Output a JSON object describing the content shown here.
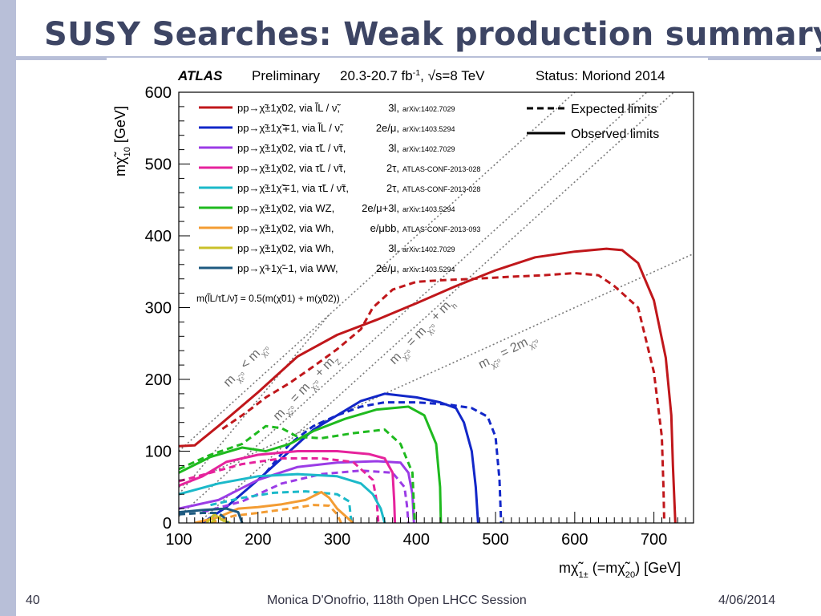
{
  "slide": {
    "title": "SUSY Searches: Weak production summary",
    "page_number": "40",
    "footer_center": "Monica D'Onofrio, 118th Open LHCC Session",
    "footer_date": "4/06/2014"
  },
  "colors": {
    "accent_bar": "#b8bfd8",
    "title": "#3d4564"
  },
  "chart_data": {
    "type": "line",
    "header": {
      "experiment": "ATLAS",
      "label": "Preliminary",
      "lumi": "20.3-20.7 fb",
      "lumi_sup": "-1",
      "energy": ", √s=8 TeV",
      "status": "Status: Moriond 2014"
    },
    "xlabel": "m",
    "xlabel_sym": "χ̃",
    "xlabel_sub": "1",
    "xlabel_sup": "±",
    "xlabel_mid": " (=m",
    "xlabel_sym2": "χ̃",
    "xlabel_sub2": "2",
    "xlabel_sup2": "0",
    "xlabel_unit": ") [GeV]",
    "ylabel": "m",
    "ylabel_sym": "χ̃",
    "ylabel_sub": "1",
    "ylabel_sup": "0",
    "ylabel_unit": " [GeV]",
    "xlim": [
      100,
      750
    ],
    "ylim": [
      0,
      600
    ],
    "x_ticks": [
      100,
      200,
      300,
      400,
      500,
      600,
      700
    ],
    "y_ticks": [
      0,
      100,
      200,
      300,
      400,
      500,
      600
    ],
    "style_legend": [
      {
        "label": "Expected limits",
        "style": "dashed"
      },
      {
        "label": "Observed limits",
        "style": "solid"
      }
    ],
    "series": [
      {
        "process": "pp→χ̃±1χ̃02, via l̃L / ν̃,",
        "final_state": "3l,",
        "ref": "arXiv:1402.7029",
        "color": "#c0171b",
        "observed": [
          [
            100,
            107
          ],
          [
            120,
            108
          ],
          [
            150,
            135
          ],
          [
            200,
            182
          ],
          [
            250,
            232
          ],
          [
            300,
            262
          ],
          [
            350,
            283
          ],
          [
            400,
            306
          ],
          [
            450,
            330
          ],
          [
            500,
            352
          ],
          [
            550,
            370
          ],
          [
            600,
            378
          ],
          [
            640,
            382
          ],
          [
            660,
            380
          ],
          [
            680,
            362
          ],
          [
            700,
            310
          ],
          [
            715,
            230
          ],
          [
            722,
            150
          ],
          [
            724,
            80
          ],
          [
            727,
            0
          ]
        ],
        "expected": [
          [
            155,
            131
          ],
          [
            180,
            150
          ],
          [
            195,
            162
          ],
          [
            210,
            175
          ],
          [
            240,
            195
          ],
          [
            270,
            218
          ],
          [
            300,
            242
          ],
          [
            330,
            270
          ],
          [
            345,
            300
          ],
          [
            370,
            325
          ],
          [
            400,
            336
          ],
          [
            430,
            338
          ],
          [
            470,
            340
          ],
          [
            520,
            343
          ],
          [
            560,
            345
          ],
          [
            600,
            348
          ],
          [
            630,
            345
          ],
          [
            650,
            330
          ],
          [
            680,
            300
          ],
          [
            700,
            210
          ],
          [
            710,
            120
          ],
          [
            712,
            50
          ],
          [
            713,
            0
          ]
        ]
      },
      {
        "process": "pp→χ̃±1χ̃∓1, via l̃L / ν̃,",
        "final_state": "2e/μ,",
        "ref": "arXiv:1403.5294",
        "color": "#1227c8",
        "observed": [
          [
            130,
            0
          ],
          [
            160,
            22
          ],
          [
            200,
            60
          ],
          [
            240,
            100
          ],
          [
            270,
            130
          ],
          [
            300,
            150
          ],
          [
            330,
            170
          ],
          [
            360,
            180
          ],
          [
            400,
            175
          ],
          [
            430,
            168
          ],
          [
            450,
            160
          ],
          [
            460,
            140
          ],
          [
            470,
            100
          ],
          [
            475,
            50
          ],
          [
            478,
            0
          ]
        ],
        "expected": [
          [
            210,
            70
          ],
          [
            240,
            110
          ],
          [
            270,
            135
          ],
          [
            300,
            150
          ],
          [
            330,
            162
          ],
          [
            360,
            168
          ],
          [
            400,
            168
          ],
          [
            440,
            165
          ],
          [
            470,
            160
          ],
          [
            490,
            148
          ],
          [
            500,
            120
          ],
          [
            505,
            60
          ],
          [
            507,
            0
          ]
        ]
      },
      {
        "process": "pp→χ̃±1χ̃02, via τ̃L / ν̃τ,",
        "final_state": "3l,",
        "ref": "arXiv:1402.7029",
        "color": "#9b3ce6",
        "observed": [
          [
            100,
            20
          ],
          [
            150,
            32
          ],
          [
            200,
            60
          ],
          [
            250,
            78
          ],
          [
            300,
            84
          ],
          [
            350,
            86
          ],
          [
            380,
            84
          ],
          [
            390,
            70
          ],
          [
            395,
            40
          ],
          [
            397,
            0
          ]
        ],
        "expected": [
          [
            130,
            15
          ],
          [
            180,
            30
          ],
          [
            230,
            55
          ],
          [
            280,
            68
          ],
          [
            330,
            73
          ],
          [
            370,
            70
          ],
          [
            385,
            50
          ],
          [
            388,
            25
          ],
          [
            390,
            0
          ]
        ]
      },
      {
        "process": "pp→χ̃±1χ̃02, via τ̃L / ν̃τ,",
        "final_state": "2τ,",
        "ref": "ATLAS-CONF-2013-028",
        "color": "#e6239c",
        "observed": [
          [
            100,
            52
          ],
          [
            130,
            65
          ],
          [
            160,
            85
          ],
          [
            200,
            95
          ],
          [
            250,
            100
          ],
          [
            300,
            100
          ],
          [
            340,
            96
          ],
          [
            360,
            90
          ],
          [
            370,
            70
          ],
          [
            372,
            30
          ],
          [
            373,
            0
          ]
        ],
        "expected": [
          [
            100,
            58
          ],
          [
            140,
            70
          ],
          [
            180,
            82
          ],
          [
            230,
            90
          ],
          [
            280,
            90
          ],
          [
            320,
            85
          ],
          [
            345,
            60
          ],
          [
            350,
            30
          ],
          [
            352,
            0
          ]
        ]
      },
      {
        "process": "pp→χ̃±1χ̃∓1, via τ̃L / ν̃τ,",
        "final_state": "2τ,",
        "ref": "ATLAS-CONF-2013-028",
        "color": "#1bb9c9",
        "observed": [
          [
            100,
            40
          ],
          [
            150,
            55
          ],
          [
            200,
            65
          ],
          [
            250,
            68
          ],
          [
            300,
            65
          ],
          [
            330,
            55
          ],
          [
            345,
            40
          ],
          [
            355,
            20
          ],
          [
            360,
            0
          ]
        ],
        "expected": [
          [
            140,
            25
          ],
          [
            180,
            35
          ],
          [
            220,
            42
          ],
          [
            260,
            44
          ],
          [
            300,
            40
          ],
          [
            315,
            30
          ],
          [
            318,
            0
          ]
        ]
      },
      {
        "process": "pp→χ̃±1χ̃02, via WZ,",
        "final_state": "2e/μ+3l,",
        "ref": "arXiv:1403.5294",
        "color": "#1fba1f",
        "observed": [
          [
            100,
            70
          ],
          [
            140,
            92
          ],
          [
            180,
            105
          ],
          [
            210,
            100
          ],
          [
            240,
            110
          ],
          [
            270,
            128
          ],
          [
            310,
            145
          ],
          [
            350,
            158
          ],
          [
            390,
            162
          ],
          [
            410,
            150
          ],
          [
            425,
            110
          ],
          [
            430,
            50
          ],
          [
            431,
            0
          ]
        ],
        "expected": [
          [
            100,
            75
          ],
          [
            140,
            95
          ],
          [
            180,
            110
          ],
          [
            210,
            135
          ],
          [
            230,
            132
          ],
          [
            250,
            120
          ],
          [
            280,
            118
          ],
          [
            320,
            125
          ],
          [
            360,
            130
          ],
          [
            380,
            110
          ],
          [
            395,
            70
          ],
          [
            398,
            0
          ]
        ]
      },
      {
        "process": "pp→χ̃±1χ̃02, via Wh,",
        "final_state": "e/μbb,",
        "ref": "ATLAS-CONF-2013-093",
        "color": "#f39c33",
        "observed": [
          [
            120,
            0
          ],
          [
            150,
            8
          ],
          [
            175,
            20
          ],
          [
            200,
            22
          ],
          [
            230,
            26
          ],
          [
            260,
            32
          ],
          [
            280,
            43
          ],
          [
            290,
            35
          ],
          [
            300,
            20
          ],
          [
            310,
            10
          ],
          [
            320,
            0
          ]
        ],
        "expected": [
          [
            140,
            0
          ],
          [
            170,
            10
          ],
          [
            200,
            14
          ],
          [
            240,
            20
          ],
          [
            270,
            25
          ],
          [
            290,
            24
          ],
          [
            300,
            12
          ],
          [
            305,
            0
          ]
        ]
      },
      {
        "process": "pp→χ̃±1χ̃02, via Wh,",
        "final_state": "3l,",
        "ref": "arXiv:1402.7029",
        "color": "#c9c02a",
        "observed": [
          [
            135,
            0
          ],
          [
            145,
            12
          ],
          [
            155,
            4
          ],
          [
            165,
            0
          ]
        ],
        "expected": [
          [
            140,
            0
          ],
          [
            150,
            8
          ],
          [
            160,
            0
          ]
        ]
      },
      {
        "process": "pp→χ̃+1χ̃−1, via WW,",
        "final_state": "2e/μ,",
        "ref": "arXiv:1403.5294",
        "color": "#1e5a80",
        "observed": [
          [
            100,
            15
          ],
          [
            130,
            18
          ],
          [
            160,
            20
          ],
          [
            175,
            15
          ],
          [
            180,
            0
          ]
        ],
        "expected": [
          [
            100,
            12
          ],
          [
            130,
            14
          ],
          [
            150,
            14
          ],
          [
            160,
            5
          ],
          [
            162,
            0
          ]
        ]
      }
    ],
    "diagonals": [
      {
        "label": "m(χ̃01) < m(χ̃02)",
        "offset": 0
      },
      {
        "label": "m(χ̃02) = m(χ̃01) + mZ",
        "offset": 91
      },
      {
        "label": "m(χ̃02) = m(χ̃01) + mh",
        "offset": 125
      },
      {
        "label": "m(χ̃02) = 2m(χ̃01)",
        "slope": 0.5
      }
    ],
    "slepton_note": "m(l̃L/τ̃L/ν̃) = 0.5(m(χ̃01) + m(χ̃02))",
    "diagonal_labels": {
      "d1": "m",
      "d2": "m",
      "d3": "m",
      "d4": "m"
    }
  }
}
